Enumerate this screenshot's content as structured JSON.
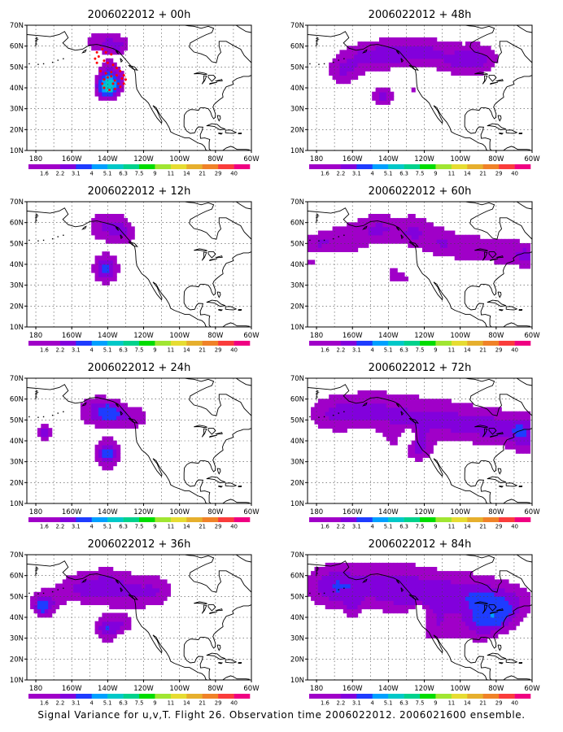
{
  "figure": {
    "caption": "Signal Variance for u,v,T. Flight 26. Observation time 2006022012. 2006021600 ensemble."
  },
  "map": {
    "lat_labels": [
      "70N",
      "60N",
      "50N",
      "40N",
      "30N",
      "20N",
      "10N"
    ],
    "lon_labels": [
      "180",
      "160W",
      "140W",
      "120W",
      "100W",
      "80W",
      "60W"
    ]
  },
  "colorbar": {
    "levels": [
      "1.6",
      "2.2",
      "3.1",
      "4",
      "5.1",
      "6.3",
      "7.5",
      "9",
      "11",
      "14",
      "21",
      "29",
      "40"
    ],
    "colors": [
      "#a000c8",
      "#8200dc",
      "#1e3cff",
      "#00a0ff",
      "#00c8c8",
      "#00d28c",
      "#00dc00",
      "#a0e632",
      "#e6dc32",
      "#e6af2d",
      "#f08228",
      "#fa3c3c",
      "#f00082"
    ]
  },
  "panels": [
    {
      "title": "2006022012 + 00h"
    },
    {
      "title": "2006022012 + 48h"
    },
    {
      "title": "2006022012 + 12h"
    },
    {
      "title": "2006022012 + 60h"
    },
    {
      "title": "2006022012 + 24h"
    },
    {
      "title": "2006022012 + 72h"
    },
    {
      "title": "2006022012 + 36h"
    },
    {
      "title": "2006022012 + 84h"
    }
  ]
}
